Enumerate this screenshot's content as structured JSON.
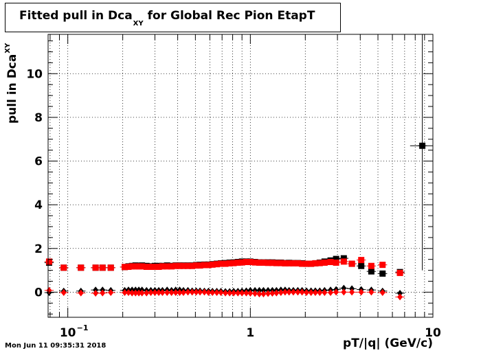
{
  "title": {
    "main": "Fitted pull in Dca",
    "sub": "XY",
    "rest": "for Global Rec Pion EtapT"
  },
  "ylabel": {
    "main": "pull in Dca",
    "sub": "XY"
  },
  "xlabel": "pT/|q| (GeV/c)",
  "footer": "Mon Jun 11 09:35:31 2018",
  "chart_data": {
    "type": "scatter",
    "xscale": "log",
    "xlim": [
      0.078,
      10
    ],
    "ylim": [
      -1.15,
      11.8
    ],
    "grid": true,
    "x_ticks": [
      {
        "value": 0.1,
        "base": "10",
        "exp": "−1"
      },
      {
        "value": 1,
        "base": "1",
        "exp": ""
      },
      {
        "value": 10,
        "base": "10",
        "exp": ""
      }
    ],
    "y_ticks": [
      0,
      2,
      4,
      6,
      8,
      10
    ],
    "series": [
      {
        "color": "#000000",
        "marker": "square",
        "points": [
          [
            0.079,
            1.35
          ],
          [
            0.095,
            1.12
          ],
          [
            0.118,
            1.12
          ],
          [
            0.142,
            1.12
          ],
          [
            0.155,
            1.12
          ],
          [
            0.172,
            1.12
          ],
          [
            0.205,
            1.15
          ],
          [
            0.215,
            1.18
          ],
          [
            0.225,
            1.2
          ],
          [
            0.235,
            1.22
          ],
          [
            0.245,
            1.2
          ],
          [
            0.255,
            1.22
          ],
          [
            0.27,
            1.2
          ],
          [
            0.285,
            1.18
          ],
          [
            0.3,
            1.2
          ],
          [
            0.315,
            1.2
          ],
          [
            0.33,
            1.2
          ],
          [
            0.35,
            1.22
          ],
          [
            0.37,
            1.2
          ],
          [
            0.39,
            1.22
          ],
          [
            0.41,
            1.22
          ],
          [
            0.43,
            1.22
          ],
          [
            0.455,
            1.22
          ],
          [
            0.48,
            1.22
          ],
          [
            0.505,
            1.24
          ],
          [
            0.53,
            1.25
          ],
          [
            0.56,
            1.26
          ],
          [
            0.59,
            1.26
          ],
          [
            0.62,
            1.28
          ],
          [
            0.655,
            1.3
          ],
          [
            0.69,
            1.32
          ],
          [
            0.73,
            1.33
          ],
          [
            0.77,
            1.35
          ],
          [
            0.81,
            1.36
          ],
          [
            0.855,
            1.38
          ],
          [
            0.9,
            1.4
          ],
          [
            0.95,
            1.4
          ],
          [
            1.0,
            1.4
          ],
          [
            1.06,
            1.38
          ],
          [
            1.12,
            1.36
          ],
          [
            1.18,
            1.36
          ],
          [
            1.25,
            1.36
          ],
          [
            1.32,
            1.36
          ],
          [
            1.39,
            1.35
          ],
          [
            1.47,
            1.35
          ],
          [
            1.55,
            1.33
          ],
          [
            1.63,
            1.34
          ],
          [
            1.72,
            1.33
          ],
          [
            1.82,
            1.33
          ],
          [
            1.92,
            1.32
          ],
          [
            2.03,
            1.3
          ],
          [
            2.15,
            1.3
          ],
          [
            2.27,
            1.32
          ],
          [
            2.4,
            1.35
          ],
          [
            2.55,
            1.4
          ],
          [
            2.75,
            1.45
          ],
          [
            2.95,
            1.52
          ],
          [
            3.25,
            1.55
          ],
          [
            3.6,
            1.3
          ],
          [
            4.05,
            1.2
          ],
          [
            4.6,
            0.95
          ],
          [
            5.3,
            0.85
          ],
          [
            6.6,
            0.92
          ],
          [
            8.75,
            6.7
          ]
        ]
      },
      {
        "color": "#ff0000",
        "marker": "square",
        "points": [
          [
            0.079,
            1.4
          ],
          [
            0.095,
            1.12
          ],
          [
            0.118,
            1.12
          ],
          [
            0.142,
            1.12
          ],
          [
            0.155,
            1.12
          ],
          [
            0.172,
            1.12
          ],
          [
            0.205,
            1.15
          ],
          [
            0.215,
            1.16
          ],
          [
            0.225,
            1.18
          ],
          [
            0.235,
            1.18
          ],
          [
            0.245,
            1.18
          ],
          [
            0.255,
            1.18
          ],
          [
            0.27,
            1.16
          ],
          [
            0.285,
            1.16
          ],
          [
            0.3,
            1.16
          ],
          [
            0.315,
            1.16
          ],
          [
            0.33,
            1.18
          ],
          [
            0.35,
            1.18
          ],
          [
            0.37,
            1.18
          ],
          [
            0.39,
            1.2
          ],
          [
            0.41,
            1.2
          ],
          [
            0.43,
            1.2
          ],
          [
            0.455,
            1.2
          ],
          [
            0.48,
            1.2
          ],
          [
            0.505,
            1.22
          ],
          [
            0.53,
            1.22
          ],
          [
            0.56,
            1.24
          ],
          [
            0.59,
            1.24
          ],
          [
            0.62,
            1.26
          ],
          [
            0.655,
            1.28
          ],
          [
            0.69,
            1.3
          ],
          [
            0.73,
            1.3
          ],
          [
            0.77,
            1.32
          ],
          [
            0.81,
            1.33
          ],
          [
            0.855,
            1.35
          ],
          [
            0.9,
            1.36
          ],
          [
            0.95,
            1.38
          ],
          [
            1.0,
            1.38
          ],
          [
            1.06,
            1.36
          ],
          [
            1.12,
            1.35
          ],
          [
            1.18,
            1.35
          ],
          [
            1.25,
            1.34
          ],
          [
            1.32,
            1.34
          ],
          [
            1.39,
            1.33
          ],
          [
            1.47,
            1.33
          ],
          [
            1.55,
            1.32
          ],
          [
            1.63,
            1.32
          ],
          [
            1.72,
            1.32
          ],
          [
            1.82,
            1.32
          ],
          [
            1.92,
            1.3
          ],
          [
            2.03,
            1.3
          ],
          [
            2.15,
            1.3
          ],
          [
            2.27,
            1.32
          ],
          [
            2.4,
            1.33
          ],
          [
            2.55,
            1.35
          ],
          [
            2.75,
            1.38
          ],
          [
            2.95,
            1.35
          ],
          [
            3.25,
            1.4
          ],
          [
            3.6,
            1.3
          ],
          [
            4.05,
            1.47
          ],
          [
            4.6,
            1.2
          ],
          [
            5.3,
            1.25
          ],
          [
            6.6,
            0.88
          ]
        ]
      },
      {
        "color": "#000000",
        "marker": "diamond",
        "points": [
          [
            0.079,
            -0.02
          ],
          [
            0.095,
            0.05
          ],
          [
            0.118,
            0.05
          ],
          [
            0.142,
            0.1
          ],
          [
            0.155,
            0.1
          ],
          [
            0.172,
            0.08
          ],
          [
            0.205,
            0.08
          ],
          [
            0.215,
            0.1
          ],
          [
            0.225,
            0.1
          ],
          [
            0.235,
            0.1
          ],
          [
            0.245,
            0.1
          ],
          [
            0.255,
            0.1
          ],
          [
            0.27,
            0.08
          ],
          [
            0.285,
            0.08
          ],
          [
            0.3,
            0.08
          ],
          [
            0.315,
            0.08
          ],
          [
            0.33,
            0.08
          ],
          [
            0.35,
            0.1
          ],
          [
            0.37,
            0.08
          ],
          [
            0.39,
            0.1
          ],
          [
            0.41,
            0.1
          ],
          [
            0.43,
            0.08
          ],
          [
            0.455,
            0.08
          ],
          [
            0.48,
            0.06
          ],
          [
            0.505,
            0.06
          ],
          [
            0.53,
            0.06
          ],
          [
            0.56,
            0.05
          ],
          [
            0.59,
            0.05
          ],
          [
            0.62,
            0.04
          ],
          [
            0.655,
            0.04
          ],
          [
            0.69,
            0.04
          ],
          [
            0.73,
            0.03
          ],
          [
            0.77,
            0.03
          ],
          [
            0.81,
            0.04
          ],
          [
            0.855,
            0.04
          ],
          [
            0.9,
            0.05
          ],
          [
            0.95,
            0.06
          ],
          [
            1.0,
            0.08
          ],
          [
            1.06,
            0.08
          ],
          [
            1.12,
            0.08
          ],
          [
            1.18,
            0.08
          ],
          [
            1.25,
            0.08
          ],
          [
            1.32,
            0.08
          ],
          [
            1.39,
            0.08
          ],
          [
            1.47,
            0.1
          ],
          [
            1.55,
            0.1
          ],
          [
            1.63,
            0.08
          ],
          [
            1.72,
            0.08
          ],
          [
            1.82,
            0.08
          ],
          [
            1.92,
            0.08
          ],
          [
            2.03,
            0.06
          ],
          [
            2.15,
            0.06
          ],
          [
            2.27,
            0.06
          ],
          [
            2.4,
            0.06
          ],
          [
            2.55,
            0.08
          ],
          [
            2.75,
            0.1
          ],
          [
            2.95,
            0.12
          ],
          [
            3.25,
            0.18
          ],
          [
            3.6,
            0.16
          ],
          [
            4.05,
            0.12
          ],
          [
            4.6,
            0.1
          ],
          [
            5.3,
            0.05
          ],
          [
            6.6,
            -0.05
          ]
        ]
      },
      {
        "color": "#ff0000",
        "marker": "diamond",
        "points": [
          [
            0.079,
            0.08
          ],
          [
            0.095,
            -0.02
          ],
          [
            0.118,
            -0.04
          ],
          [
            0.142,
            -0.05
          ],
          [
            0.155,
            -0.04
          ],
          [
            0.172,
            -0.02
          ],
          [
            0.205,
            -0.02
          ],
          [
            0.215,
            -0.02
          ],
          [
            0.225,
            -0.04
          ],
          [
            0.235,
            -0.04
          ],
          [
            0.245,
            -0.04
          ],
          [
            0.255,
            -0.04
          ],
          [
            0.27,
            -0.04
          ],
          [
            0.285,
            -0.02
          ],
          [
            0.3,
            -0.02
          ],
          [
            0.315,
            -0.02
          ],
          [
            0.33,
            -0.02
          ],
          [
            0.35,
            -0.02
          ],
          [
            0.37,
            -0.02
          ],
          [
            0.39,
            -0.02
          ],
          [
            0.41,
            -0.02
          ],
          [
            0.43,
            -0.02
          ],
          [
            0.455,
            0.0
          ],
          [
            0.48,
            0.0
          ],
          [
            0.505,
            0.0
          ],
          [
            0.53,
            0.0
          ],
          [
            0.56,
            0.0
          ],
          [
            0.59,
            -0.02
          ],
          [
            0.62,
            -0.02
          ],
          [
            0.655,
            -0.02
          ],
          [
            0.69,
            -0.02
          ],
          [
            0.73,
            -0.04
          ],
          [
            0.77,
            -0.04
          ],
          [
            0.81,
            -0.04
          ],
          [
            0.855,
            -0.04
          ],
          [
            0.9,
            -0.04
          ],
          [
            0.95,
            -0.04
          ],
          [
            1.0,
            -0.05
          ],
          [
            1.06,
            -0.06
          ],
          [
            1.12,
            -0.08
          ],
          [
            1.18,
            -0.08
          ],
          [
            1.25,
            -0.06
          ],
          [
            1.32,
            -0.05
          ],
          [
            1.39,
            -0.04
          ],
          [
            1.47,
            -0.02
          ],
          [
            1.55,
            0.0
          ],
          [
            1.63,
            0.0
          ],
          [
            1.72,
            0.0
          ],
          [
            1.82,
            0.0
          ],
          [
            1.92,
            0.0
          ],
          [
            2.03,
            -0.02
          ],
          [
            2.15,
            -0.02
          ],
          [
            2.27,
            -0.02
          ],
          [
            2.4,
            -0.02
          ],
          [
            2.55,
            -0.02
          ],
          [
            2.75,
            -0.02
          ],
          [
            2.95,
            0.0
          ],
          [
            3.25,
            0.0
          ],
          [
            3.6,
            0.0
          ],
          [
            4.05,
            0.0
          ],
          [
            4.6,
            0.0
          ],
          [
            5.3,
            -0.02
          ],
          [
            6.6,
            -0.22
          ]
        ]
      }
    ]
  }
}
